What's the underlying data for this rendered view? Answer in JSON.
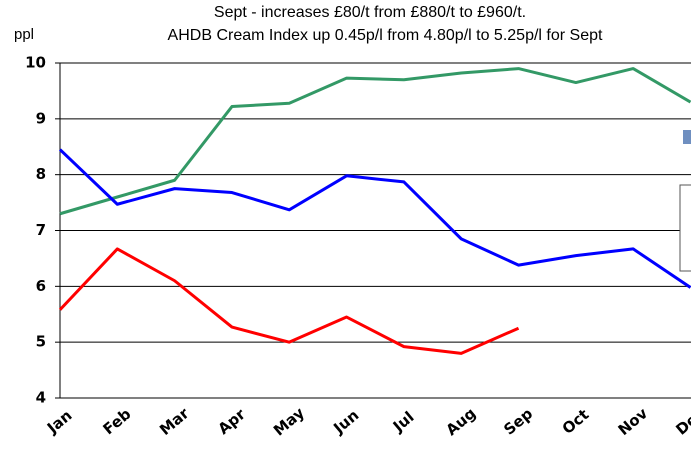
{
  "chart_data": {
    "type": "line",
    "title": [
      "Sept - increases £80/t from £880/t to £960/t.",
      "AHDB Cream Index up 0.45p/l from 4.80p/l to 5.25p/l for Sept"
    ],
    "y_label": "ppl",
    "categories": [
      "Jan",
      "Feb",
      "Mar",
      "Apr",
      "May",
      "Jun",
      "Jul",
      "Aug",
      "Sep",
      "Oct",
      "Nov",
      "Dec"
    ],
    "series": [
      {
        "color": "#339966",
        "values": [
          7.3,
          7.6,
          7.9,
          9.22,
          9.28,
          9.73,
          9.7,
          9.82,
          9.9,
          9.65,
          9.9,
          9.3
        ]
      },
      {
        "color": "#0000ff",
        "values": [
          8.45,
          7.47,
          7.75,
          7.68,
          7.37,
          7.98,
          7.87,
          6.85,
          6.38,
          6.55,
          6.67,
          5.98
        ]
      },
      {
        "color": "#ff0000",
        "values": [
          5.58,
          6.67,
          6.1,
          5.27,
          5.0,
          5.45,
          4.92,
          4.8,
          5.25,
          null,
          null,
          null
        ]
      }
    ],
    "ylim": [
      4,
      10
    ],
    "yticks": [
      4,
      5,
      6,
      7,
      8,
      9,
      10
    ],
    "grid": true
  }
}
